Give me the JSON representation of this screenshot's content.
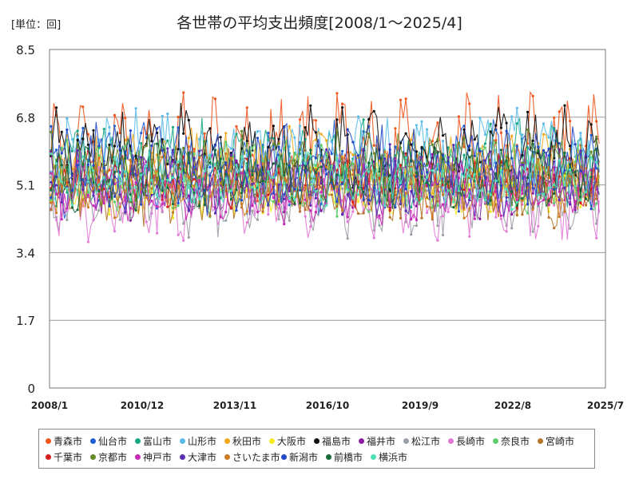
{
  "chart_data": {
    "type": "line",
    "title": "各世帯の平均支出頻度[2008/1～2025/4]",
    "unit_label": "[単位：回]",
    "ylim": [
      0,
      8.5
    ],
    "y_ticks": [
      "0",
      "1.7",
      "3.4",
      "5.1",
      "6.8",
      "8.5"
    ],
    "x_ticks": [
      "2008/1",
      "2010/12",
      "2013/11",
      "2016/10",
      "2019/9",
      "2022/8",
      "2025/7"
    ],
    "x_range": [
      "2008-01",
      "2025-07"
    ],
    "grid": true,
    "legend_position": "bottom",
    "series": [
      {
        "name": "青森市",
        "color": "#f0551e",
        "base": 6.0,
        "amp": 0.95,
        "seed": 1
      },
      {
        "name": "仙台市",
        "color": "#1f5fd6",
        "base": 5.5,
        "amp": 0.75,
        "seed": 2
      },
      {
        "name": "富山市",
        "color": "#1aa882",
        "base": 5.6,
        "amp": 0.7,
        "seed": 3
      },
      {
        "name": "山形市",
        "color": "#5bbcea",
        "base": 5.8,
        "amp": 0.75,
        "seed": 4
      },
      {
        "name": "秋田市",
        "color": "#f2a81c",
        "base": 5.5,
        "amp": 0.7,
        "seed": 5
      },
      {
        "name": "大阪市",
        "color": "#f4ec21",
        "base": 5.0,
        "amp": 0.45,
        "seed": 6
      },
      {
        "name": "福島市",
        "color": "#111111",
        "base": 6.0,
        "amp": 0.7,
        "seed": 7
      },
      {
        "name": "福井市",
        "color": "#8a1a9e",
        "base": 5.1,
        "amp": 0.55,
        "seed": 8
      },
      {
        "name": "松江市",
        "color": "#9aa0a6",
        "base": 4.8,
        "amp": 0.65,
        "seed": 9
      },
      {
        "name": "長崎市",
        "color": "#e27ad6",
        "base": 4.7,
        "amp": 0.65,
        "seed": 10
      },
      {
        "name": "奈良市",
        "color": "#5fcc6a",
        "base": 5.3,
        "amp": 0.6,
        "seed": 11
      },
      {
        "name": "宮崎市",
        "color": "#b5752a",
        "base": 5.0,
        "amp": 0.6,
        "seed": 12
      },
      {
        "name": "千葉市",
        "color": "#d4201c",
        "base": 5.2,
        "amp": 0.45,
        "seed": 13
      },
      {
        "name": "京都市",
        "color": "#6a8a2a",
        "base": 5.5,
        "amp": 0.6,
        "seed": 14
      },
      {
        "name": "神戸市",
        "color": "#c82ab4",
        "base": 4.9,
        "amp": 0.5,
        "seed": 15
      },
      {
        "name": "大津市",
        "color": "#5a2eb0",
        "base": 5.2,
        "amp": 0.55,
        "seed": 16
      },
      {
        "name": "さいたま市",
        "color": "#cc7d25",
        "base": 5.1,
        "amp": 0.5,
        "seed": 17
      },
      {
        "name": "新潟市",
        "color": "#2348c8",
        "base": 5.5,
        "amp": 0.7,
        "seed": 18
      },
      {
        "name": "前橋市",
        "color": "#146a3a",
        "base": 5.3,
        "amp": 0.55,
        "seed": 19
      },
      {
        "name": "横浜市",
        "color": "#4fe0b8",
        "base": 5.2,
        "amp": 0.45,
        "seed": 20
      }
    ]
  }
}
